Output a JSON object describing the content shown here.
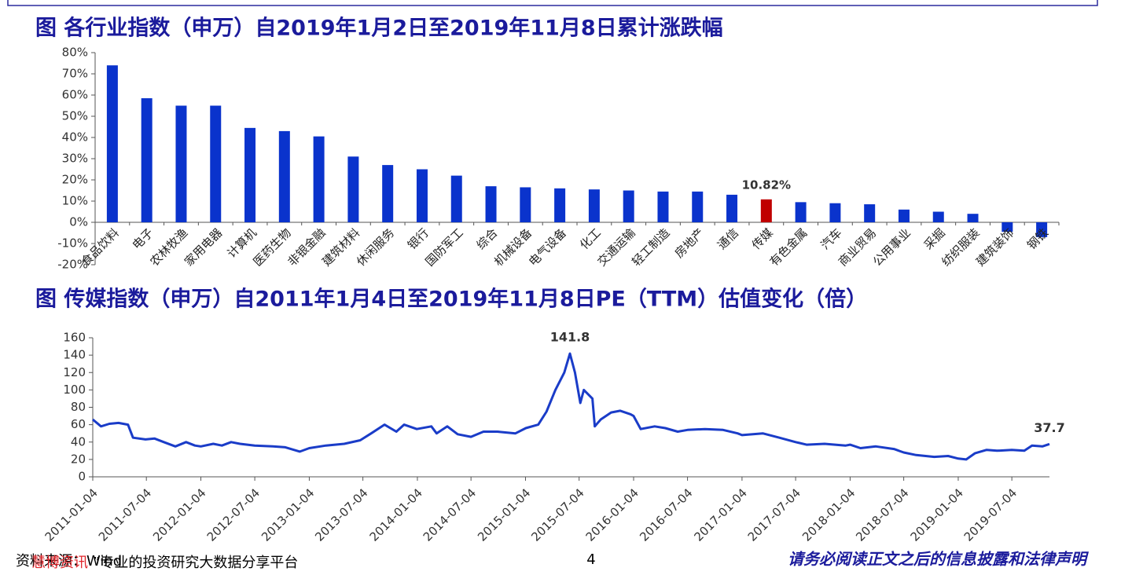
{
  "chart_data": [
    {
      "type": "bar",
      "title": "图 各行业指数（申万）自2019年1月2日至2019年11月8日累计涨跌幅",
      "categories": [
        "食品饮料",
        "电子",
        "农林牧渔",
        "家用电器",
        "计算机",
        "医药生物",
        "非银金融",
        "建筑材料",
        "休闲服务",
        "银行",
        "国防军工",
        "综合",
        "机械设备",
        "电气设备",
        "化工",
        "交通运输",
        "轻工制造",
        "房地产",
        "通信",
        "传媒",
        "有色金属",
        "汽车",
        "商业贸易",
        "公用事业",
        "采掘",
        "纺织服装",
        "建筑装饰",
        "钢铁"
      ],
      "values": [
        74,
        58.5,
        55,
        55,
        44.5,
        43,
        40.5,
        31,
        27,
        25,
        22,
        17,
        16.5,
        16,
        15.5,
        15,
        14.5,
        14.5,
        13,
        10.82,
        9.5,
        9,
        8.5,
        6,
        5,
        4,
        -4.5,
        -7
      ],
      "value_labels": [
        null,
        null,
        null,
        null,
        null,
        null,
        null,
        null,
        null,
        null,
        null,
        null,
        null,
        null,
        null,
        null,
        null,
        null,
        null,
        "10.82%",
        null,
        null,
        null,
        null,
        null,
        null,
        null,
        null
      ],
      "colors": [
        "#0a33cc",
        "#0a33cc",
        "#0a33cc",
        "#0a33cc",
        "#0a33cc",
        "#0a33cc",
        "#0a33cc",
        "#0a33cc",
        "#0a33cc",
        "#0a33cc",
        "#0a33cc",
        "#0a33cc",
        "#0a33cc",
        "#0a33cc",
        "#0a33cc",
        "#0a33cc",
        "#0a33cc",
        "#0a33cc",
        "#0a33cc",
        "#c00000",
        "#0a33cc",
        "#0a33cc",
        "#0a33cc",
        "#0a33cc",
        "#0a33cc",
        "#0a33cc",
        "#0a33cc",
        "#0a33cc"
      ],
      "ylim": [
        -20,
        80
      ],
      "yticks": [
        {
          "value": -20,
          "label": "-20%"
        },
        {
          "value": -10,
          "label": "-10%"
        },
        {
          "value": 0,
          "label": "0%"
        },
        {
          "value": 10,
          "label": "10%"
        },
        {
          "value": 20,
          "label": "20%"
        },
        {
          "value": 30,
          "label": "30%"
        },
        {
          "value": 40,
          "label": "40%"
        },
        {
          "value": 50,
          "label": "50%"
        },
        {
          "value": 60,
          "label": "60%"
        },
        {
          "value": 70,
          "label": "70%"
        },
        {
          "value": 80,
          "label": "80%"
        }
      ],
      "grid": false
    },
    {
      "type": "line",
      "title": "图 传媒指数（申万）自2011年1月4日至2019年11月8日PE（TTM）估值变化（倍）",
      "x": [
        "2011-01-04",
        "2011-02-01",
        "2011-03-01",
        "2011-04-01",
        "2011-05-03",
        "2011-05-20",
        "2011-07-01",
        "2011-08-01",
        "2011-09-01",
        "2011-10-10",
        "2011-11-15",
        "2011-12-15",
        "2012-01-04",
        "2012-02-15",
        "2012-03-15",
        "2012-04-15",
        "2012-05-15",
        "2012-07-04",
        "2012-09-03",
        "2012-10-15",
        "2012-12-03",
        "2013-01-04",
        "2013-03-01",
        "2013-05-02",
        "2013-06-25",
        "2013-08-01",
        "2013-09-15",
        "2013-10-25",
        "2013-11-20",
        "2014-01-02",
        "2014-02-20",
        "2014-03-10",
        "2014-04-15",
        "2014-05-20",
        "2014-07-04",
        "2014-08-15",
        "2014-10-01",
        "2014-12-01",
        "2015-01-05",
        "2015-02-16",
        "2015-03-16",
        "2015-04-15",
        "2015-05-15",
        "2015-06-03",
        "2015-06-20",
        "2015-07-08",
        "2015-07-20",
        "2015-08-18",
        "2015-08-26",
        "2015-09-15",
        "2015-10-20",
        "2015-11-20",
        "2015-12-25",
        "2016-01-04",
        "2016-01-28",
        "2016-03-15",
        "2016-04-20",
        "2016-06-01",
        "2016-07-04",
        "2016-09-01",
        "2016-11-01",
        "2016-12-20",
        "2017-01-04",
        "2017-03-15",
        "2017-05-10",
        "2017-07-04",
        "2017-08-10",
        "2017-10-10",
        "2017-12-20",
        "2018-01-04",
        "2018-02-08",
        "2018-04-01",
        "2018-06-01",
        "2018-07-04",
        "2018-08-15",
        "2018-10-15",
        "2018-12-01",
        "2019-01-04",
        "2019-01-31",
        "2019-03-01",
        "2019-04-10",
        "2019-05-15",
        "2019-07-04",
        "2019-08-15",
        "2019-09-10",
        "2019-10-15",
        "2019-11-08"
      ],
      "series": [
        {
          "name": "传媒",
          "color": "#1a3cc8",
          "values": [
            66,
            58,
            61,
            62,
            60,
            45,
            43,
            44,
            40,
            35,
            40,
            36,
            35,
            38,
            36,
            40,
            38,
            36,
            35,
            34,
            29,
            33,
            36,
            38,
            42,
            50,
            60,
            52,
            60,
            55,
            58,
            50,
            58,
            49,
            46,
            52,
            52,
            50,
            56,
            60,
            75,
            100,
            120,
            141.8,
            120,
            85,
            100,
            90,
            58,
            66,
            74,
            76,
            72,
            70,
            55,
            58,
            56,
            52,
            54,
            55,
            54,
            50,
            48,
            50,
            45,
            40,
            37,
            38,
            36,
            37,
            33,
            35,
            32,
            28,
            25,
            23,
            24,
            21,
            20,
            27,
            31,
            30,
            31,
            30,
            36,
            35,
            37.7
          ]
        }
      ],
      "annotations": [
        {
          "x": "2015-06-03",
          "y": 141.8
        },
        {
          "x": "2019-11-08",
          "y": 37.7
        }
      ],
      "xlim": [
        "2011-01-04",
        "2019-11-08"
      ],
      "xticks": [
        "2011-01-04",
        "2011-07-04",
        "2012-01-04",
        "2012-07-04",
        "2013-01-04",
        "2013-07-04",
        "2014-01-04",
        "2014-07-04",
        "2015-01-04",
        "2015-07-04",
        "2016-01-04",
        "2016-07-04",
        "2017-01-04",
        "2017-07-04",
        "2018-01-04",
        "2018-07-04",
        "2019-01-04",
        "2019-07-04"
      ],
      "ylim": [
        0,
        160
      ],
      "yticks": [
        0,
        20,
        40,
        60,
        80,
        100,
        120,
        140,
        160
      ],
      "grid": false
    }
  ],
  "footer": {
    "source": "资料来源：Wind",
    "watermark_brand": "慧博资讯",
    "watermark_text": "”专业的投资研究大数据分享平台",
    "page": "4",
    "disclaimer": "请务必阅读正文之后的信息披露和法律声明"
  }
}
